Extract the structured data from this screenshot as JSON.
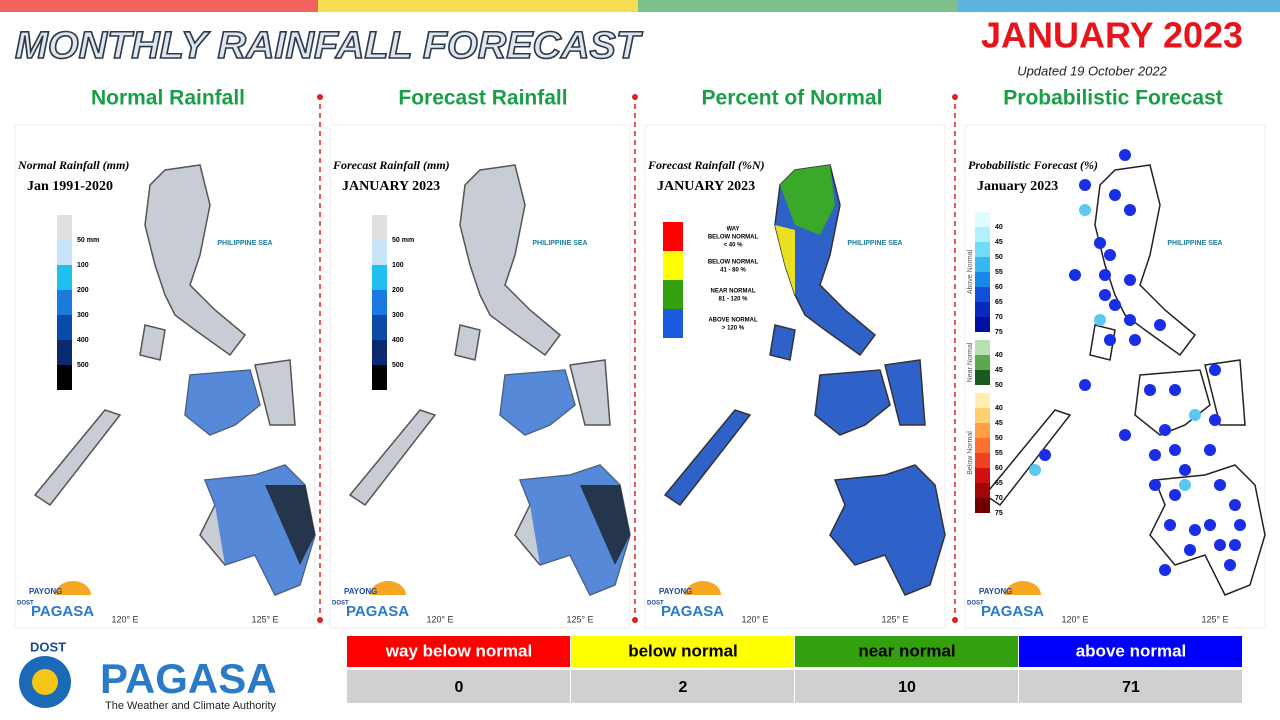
{
  "header": {
    "title": "MONTHLY RAINFALL FORECAST",
    "month": "JANUARY 2023",
    "updated": "Updated 19 October 2022"
  },
  "panels": [
    {
      "title": "Normal Rainfall",
      "map_title": "Normal Rainfall (mm)",
      "map_subtitle": "Jan 1991-2020",
      "legend": [
        "50 mm",
        "100",
        "200",
        "300",
        "400",
        "500"
      ]
    },
    {
      "title": "Forecast Rainfall",
      "map_title": "Forecast Rainfall (mm)",
      "map_subtitle": "JANUARY 2023",
      "legend": [
        "50 mm",
        "100",
        "200",
        "300",
        "400",
        "500"
      ]
    },
    {
      "title": "Percent of Normal",
      "map_title": "Forecast Rainfall (%N)",
      "map_subtitle": "JANUARY 2023",
      "legend": [
        [
          "WAY",
          "BELOW NORMAL",
          "< 40 %"
        ],
        [
          "BELOW NORMAL",
          "41 - 80 %"
        ],
        [
          "NEAR NORMAL",
          "81 - 120 %"
        ],
        [
          "ABOVE NORMAL",
          "> 120 %"
        ]
      ]
    },
    {
      "title": "Probabilistic Forecast",
      "map_title": "Probabilistic Forecast (%)",
      "map_subtitle": "January 2023",
      "legend": [
        {
          "name": "Above Normal",
          "labels": [
            "40",
            "45",
            "50",
            "55",
            "60",
            "65",
            "70",
            "75"
          ]
        },
        {
          "name": "Near Normal",
          "labels": [
            "40",
            "45",
            "50"
          ]
        },
        {
          "name": "Below Normal",
          "labels": [
            "40",
            "45",
            "50",
            "55",
            "60",
            "65",
            "70",
            "75"
          ]
        }
      ]
    }
  ],
  "map_labels": {
    "sea": "PHILIPPINE SEA",
    "lon": [
      "120° E",
      "125° E"
    ],
    "logo": [
      "DOST",
      "PAYONG",
      "PAGASA"
    ]
  },
  "summary": {
    "header": [
      "way below normal",
      "below normal",
      "near normal",
      "above normal"
    ],
    "values": [
      0,
      2,
      10,
      71
    ]
  },
  "footer": {
    "agency": "DOST",
    "name": "PAGASA",
    "tagline": "The Weather and Climate Authority"
  }
}
